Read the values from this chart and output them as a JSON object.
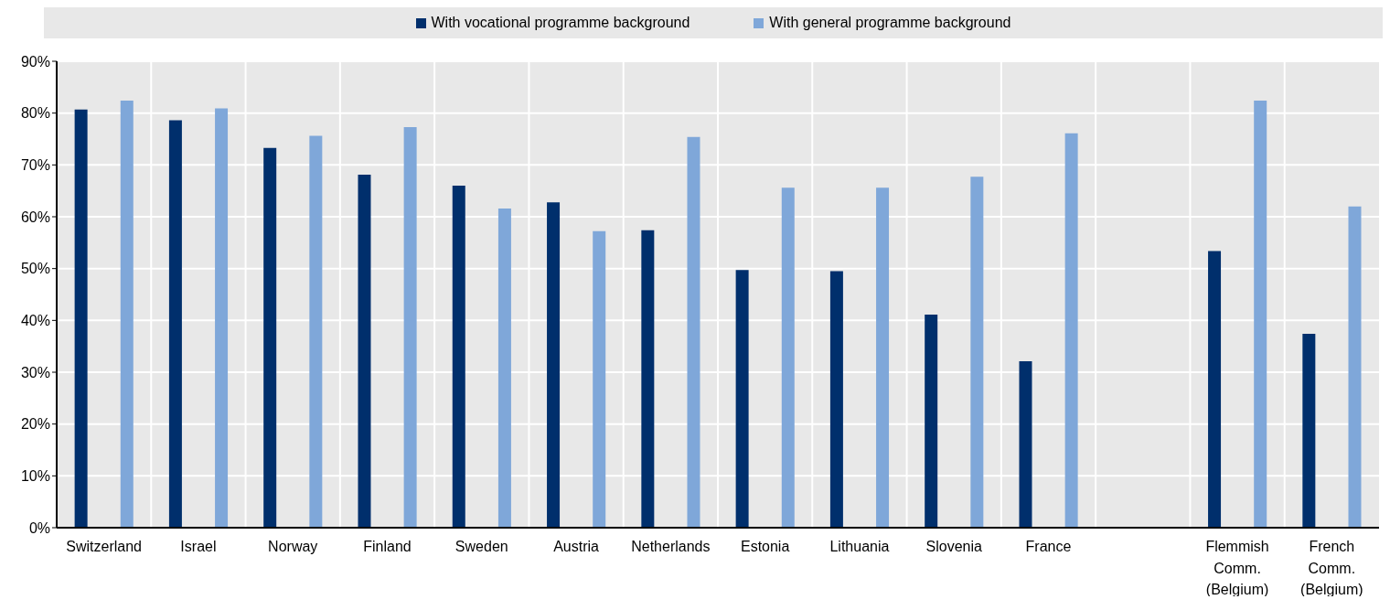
{
  "chart_data": {
    "type": "bar",
    "categories": [
      "Switzerland",
      "Israel",
      "Norway",
      "Finland",
      "Sweden",
      "Austria",
      "Netherlands",
      "Estonia",
      "Lithuania",
      "Slovenia",
      "France",
      null,
      "Flemmish Comm. (Belgium)",
      "French Comm. (Belgium)"
    ],
    "series": [
      {
        "name": "With vocational programme background",
        "color": "#002f6c",
        "values": [
          80.7,
          78.6,
          73.3,
          68.1,
          66.0,
          62.8,
          57.4,
          49.7,
          49.5,
          41.1,
          32.1,
          null,
          53.4,
          37.4
        ]
      },
      {
        "name": "With general programme background",
        "color": "#7fa7d9",
        "values": [
          82.4,
          80.9,
          75.6,
          77.3,
          61.6,
          57.2,
          75.4,
          65.6,
          65.6,
          67.7,
          76.1,
          null,
          82.4,
          62.0
        ]
      }
    ],
    "ylim": [
      0,
      90
    ],
    "yticks": [
      {
        "value": 0,
        "label": "0%"
      },
      {
        "value": 10,
        "label": "10%"
      },
      {
        "value": 20,
        "label": "20%"
      },
      {
        "value": 30,
        "label": "30%"
      },
      {
        "value": 40,
        "label": "40%"
      },
      {
        "value": 50,
        "label": "50%"
      },
      {
        "value": 60,
        "label": "60%"
      },
      {
        "value": 70,
        "label": "70%"
      },
      {
        "value": 80,
        "label": "80%"
      },
      {
        "value": 90,
        "label": "90%"
      }
    ],
    "grid": true,
    "legend": "top"
  }
}
